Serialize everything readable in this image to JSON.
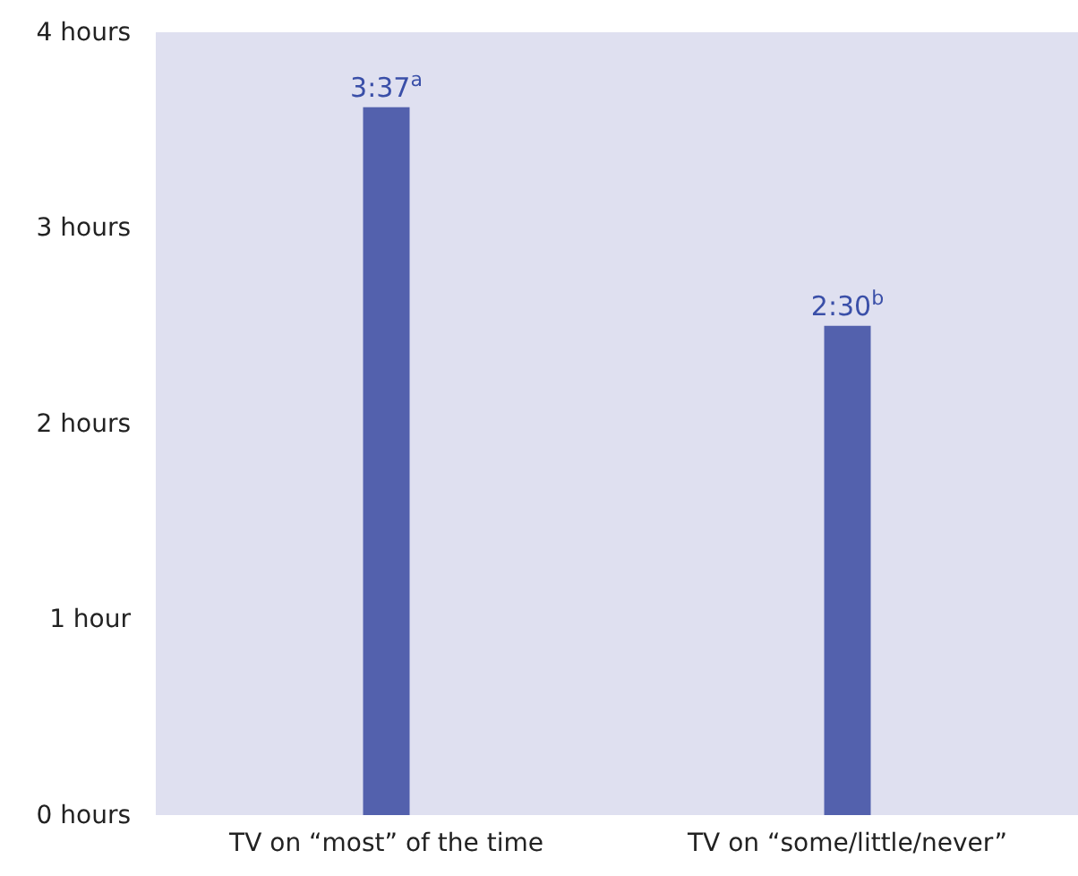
{
  "chart_data": {
    "type": "bar",
    "categories": [
      "TV on “most” of the time",
      "TV on “some/little/never”"
    ],
    "values": [
      3.617,
      2.5
    ],
    "value_labels": [
      "3:37$^{a}$",
      "2:30$^{b}$"
    ],
    "color": "#5361ad",
    "ylim": [
      0,
      4
    ],
    "yticks": [
      {
        "value": 0,
        "label": "0 hours"
      },
      {
        "value": 1,
        "label": "1 hour"
      },
      {
        "value": 2,
        "label": "2 hours"
      },
      {
        "value": 3,
        "label": "3 hours"
      },
      {
        "value": 4,
        "label": "4 hours"
      }
    ],
    "grid": false
  }
}
